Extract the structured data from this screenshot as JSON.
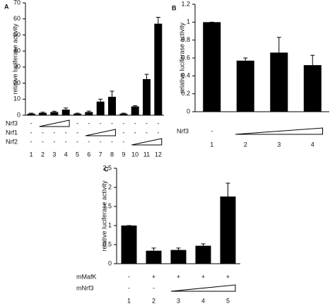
{
  "chart_data": [
    {
      "type": "bar",
      "panel_label": "A",
      "y_label": "relative luciferase activity",
      "categories": [
        "1",
        "2",
        "3",
        "4",
        "5",
        "6",
        "7",
        "8",
        "9",
        "10",
        "11",
        "12"
      ],
      "values": [
        1,
        1.5,
        2,
        3.5,
        1,
        2,
        8.5,
        11.5,
        1,
        5.5,
        22.5,
        57
      ],
      "errors": [
        0.3,
        0.4,
        0.5,
        1,
        0.3,
        0.6,
        1.5,
        3.5,
        0.3,
        0.5,
        3,
        4
      ],
      "color": "#000000",
      "ylim": [
        0,
        70
      ],
      "yticks": [
        0,
        10,
        20,
        30,
        40,
        50,
        60,
        70
      ],
      "conditions": [
        {
          "name": "Nrf3",
          "signs": [
            "-",
            null,
            null,
            null,
            "-",
            "-",
            "-",
            "-",
            "-",
            "-",
            "-",
            "-"
          ]
        },
        {
          "name": "Nrf1",
          "signs": [
            "-",
            "-",
            "-",
            "-",
            "-",
            null,
            null,
            null,
            "-",
            "-",
            "-",
            "-"
          ]
        },
        {
          "name": "Nrf2",
          "signs": [
            "-",
            "-",
            "-",
            "-",
            "-",
            "-",
            "-",
            "-",
            "-",
            null,
            null,
            null
          ]
        }
      ]
    },
    {
      "type": "bar",
      "panel_label": "B",
      "y_label": "relative luciferase activity",
      "categories": [
        "1",
        "2",
        "3",
        "4"
      ],
      "values": [
        1,
        0.57,
        0.66,
        0.52
      ],
      "errors": [
        0,
        0.03,
        0.17,
        0.11
      ],
      "color": "#000000",
      "ylim": [
        0,
        1.2
      ],
      "yticks": [
        0,
        0.2,
        0.4,
        0.6,
        0.8,
        1,
        1.2
      ],
      "conditions": [
        {
          "name": "Nrf3",
          "signs": [
            "-",
            null,
            null,
            null
          ]
        }
      ]
    },
    {
      "type": "bar",
      "panel_label": "C",
      "y_label": "relative luciferase activity",
      "categories": [
        "1",
        "2",
        "3",
        "4",
        "5"
      ],
      "values": [
        1,
        0.34,
        0.36,
        0.47,
        1.76
      ],
      "errors": [
        0,
        0.07,
        0.05,
        0.05,
        0.35
      ],
      "color": "#000000",
      "ylim": [
        0,
        2.5
      ],
      "yticks": [
        0,
        0.5,
        1,
        1.5,
        2,
        2.5
      ],
      "conditions": [
        {
          "name": "mMafK",
          "signs": [
            "-",
            "+",
            "+",
            "+",
            "+"
          ]
        },
        {
          "name": "mNrf3",
          "signs": [
            "-",
            "-",
            null,
            null,
            null
          ]
        }
      ]
    }
  ]
}
